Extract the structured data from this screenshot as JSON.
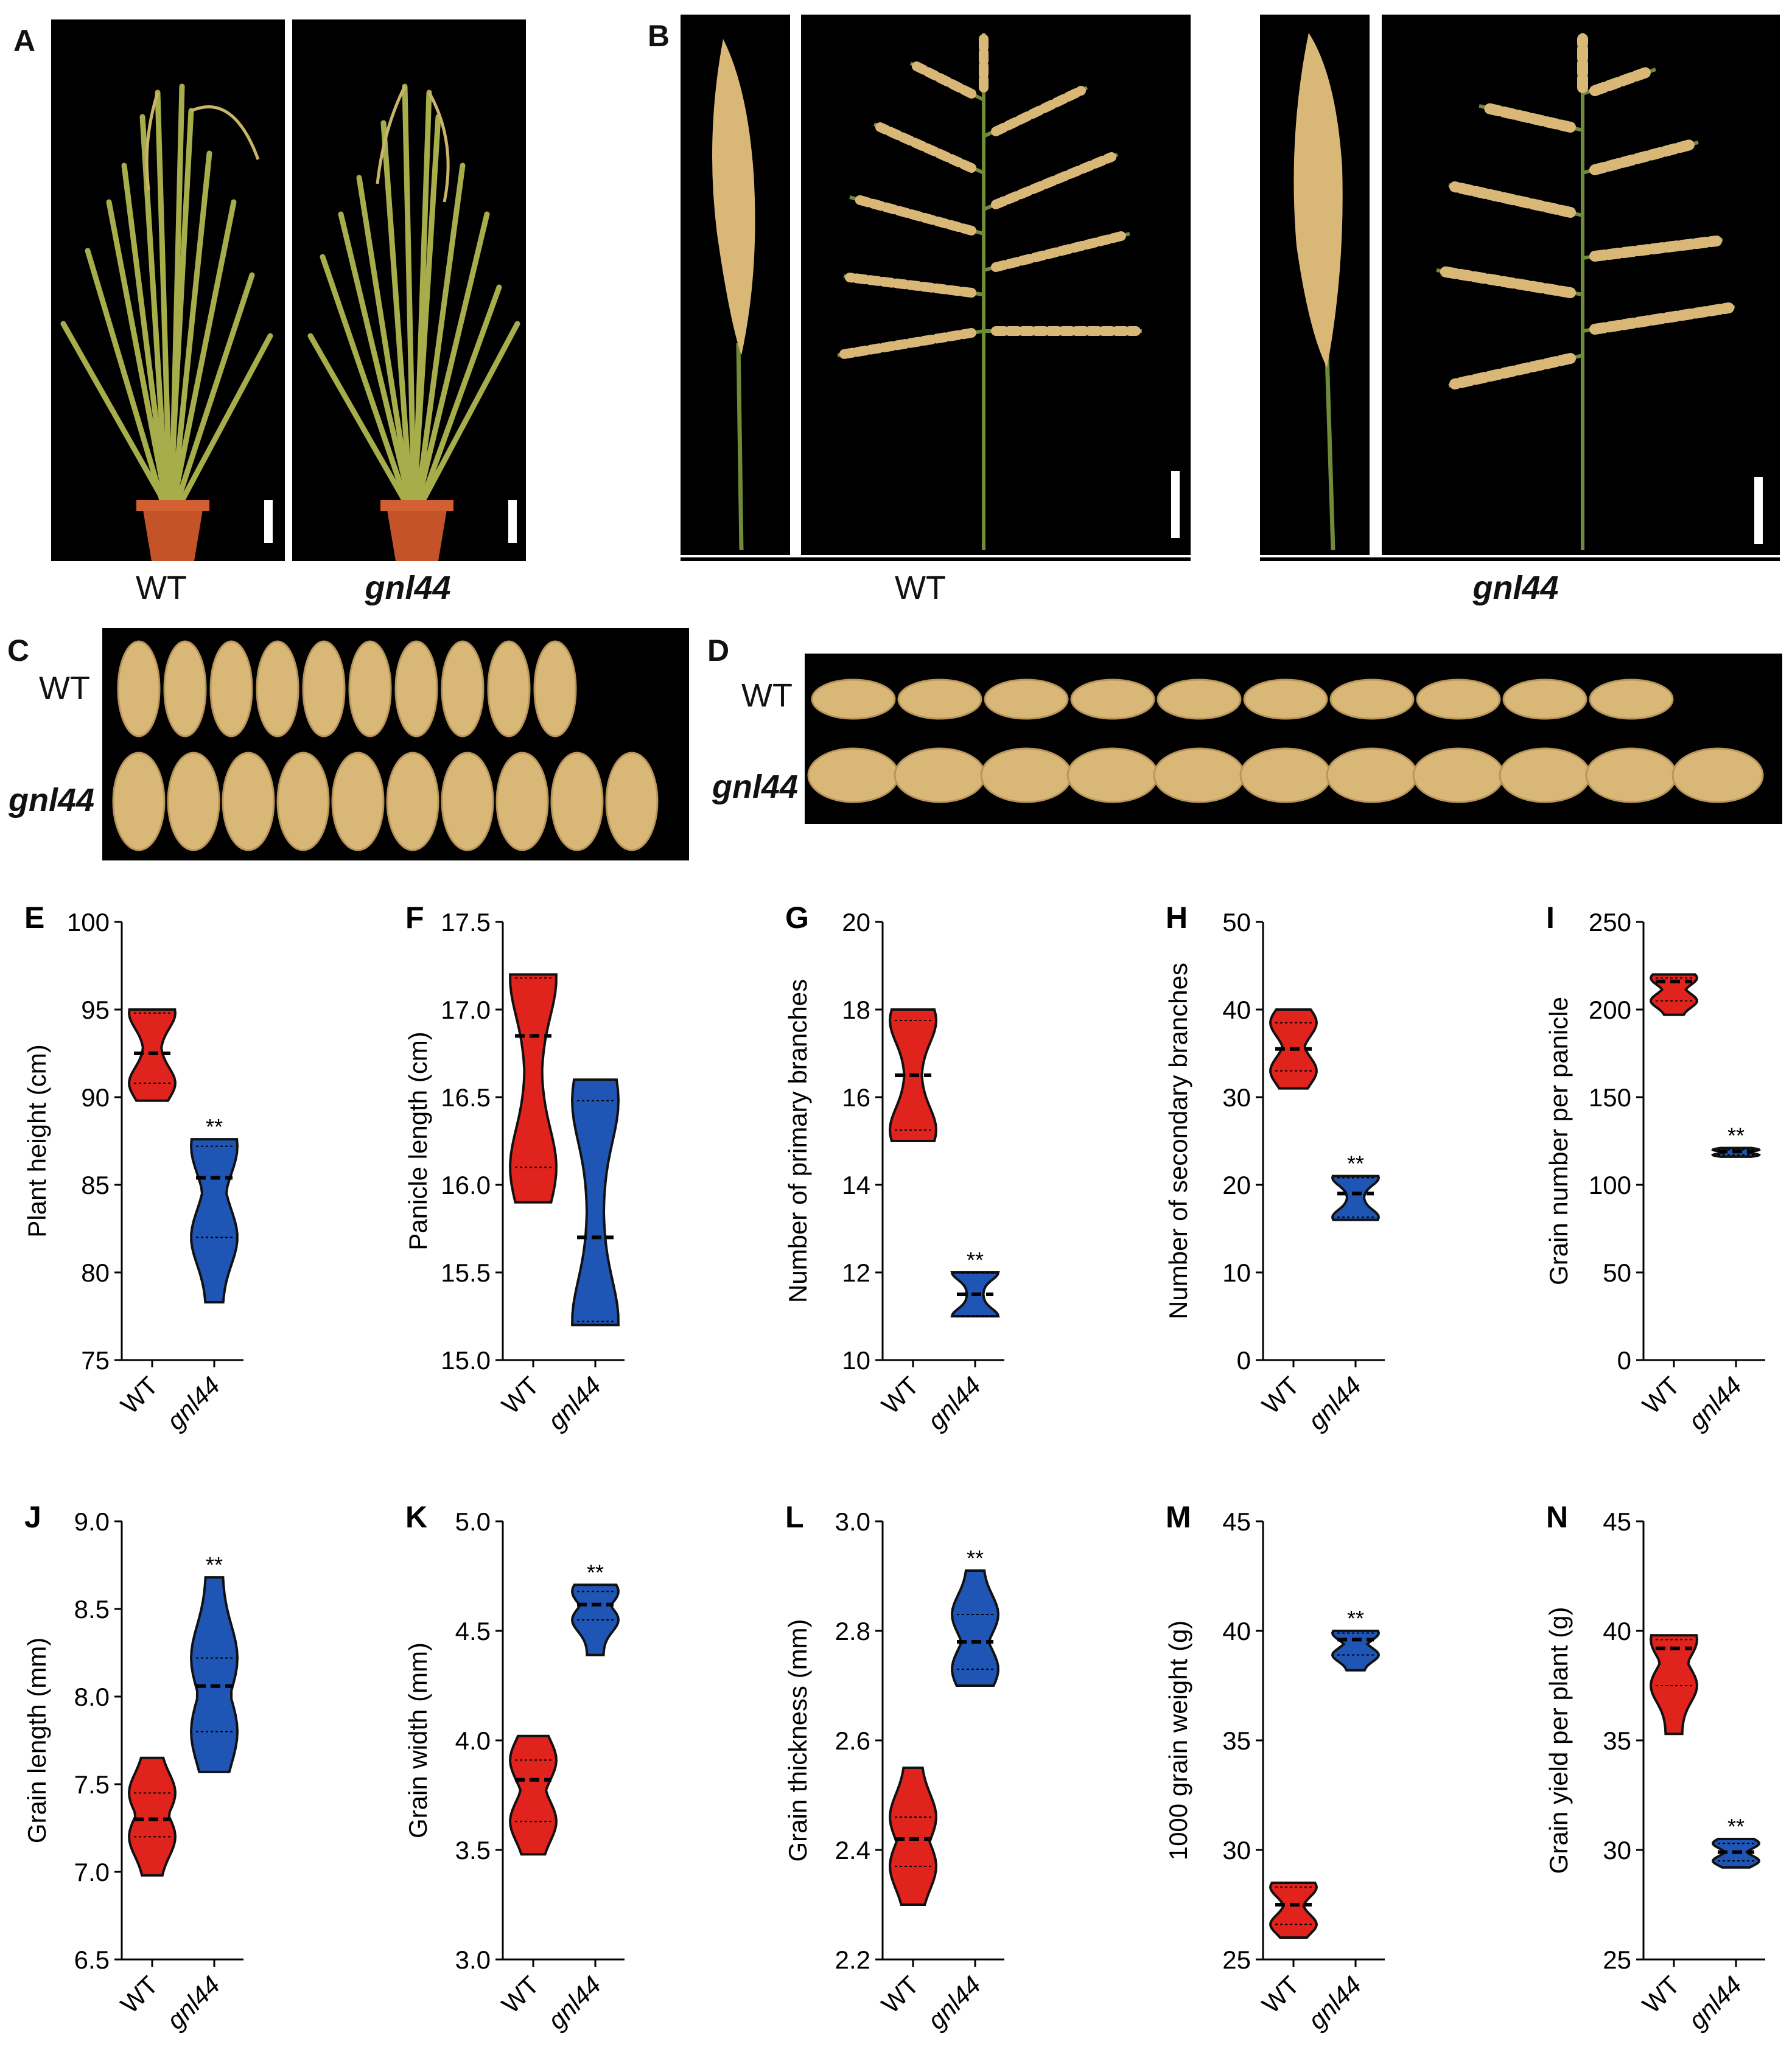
{
  "panels": {
    "A": {
      "letter": "A",
      "captions": [
        "WT",
        "gnl44"
      ]
    },
    "B": {
      "letter": "B",
      "captions": [
        "WT",
        "gnl44"
      ]
    },
    "C": {
      "letter": "C",
      "rows": [
        "WT",
        "gnl44"
      ]
    },
    "D": {
      "letter": "D",
      "rows": [
        "WT",
        "gnl44"
      ]
    }
  },
  "colors": {
    "wt": "#e0231c",
    "mutant": "#1f55b5",
    "background": "#000000",
    "grain": "#d9b877",
    "plant": "#9aa544",
    "pot": "#c4532a"
  },
  "chart_data": [
    {
      "letter": "E",
      "type": "violin",
      "ylabel": "Plant height (cm)",
      "ylim": [
        75,
        100
      ],
      "yticks": [
        75,
        80,
        85,
        90,
        95,
        100
      ],
      "categories": [
        "WT",
        "gnl44"
      ],
      "series": [
        {
          "category": "WT",
          "min": 89.8,
          "max": 95.0,
          "median": 92.5,
          "q1": 90.8,
          "q3": 94.8,
          "significance": ""
        },
        {
          "category": "gnl44",
          "min": 78.3,
          "max": 87.6,
          "median": 85.4,
          "q1": 82.0,
          "q3": 87.2,
          "significance": "**"
        }
      ]
    },
    {
      "letter": "F",
      "type": "violin",
      "ylabel": "Panicle length (cm)",
      "ylim": [
        15.0,
        17.5
      ],
      "yticks": [
        "15.0",
        "15.5",
        "16.0",
        "16.5",
        "17.0",
        "17.5"
      ],
      "categories": [
        "WT",
        "gnl44"
      ],
      "series": [
        {
          "category": "WT",
          "min": 15.9,
          "max": 17.2,
          "median": 16.85,
          "q1": 16.1,
          "q3": 17.18,
          "significance": ""
        },
        {
          "category": "gnl44",
          "min": 15.2,
          "max": 16.6,
          "median": 15.7,
          "q1": 15.22,
          "q3": 16.48,
          "significance": ""
        }
      ]
    },
    {
      "letter": "G",
      "type": "violin",
      "ylabel": "Number of primary branches",
      "ylim": [
        10,
        20
      ],
      "yticks": [
        10,
        12,
        14,
        16,
        18,
        20
      ],
      "categories": [
        "WT",
        "gnl44"
      ],
      "series": [
        {
          "category": "WT",
          "min": 15.0,
          "max": 18.0,
          "median": 16.5,
          "q1": 15.25,
          "q3": 17.75,
          "significance": ""
        },
        {
          "category": "gnl44",
          "min": 11.0,
          "max": 12.0,
          "median": 11.5,
          "q1": 11.0,
          "q3": 12.0,
          "significance": "**"
        }
      ]
    },
    {
      "letter": "H",
      "type": "violin",
      "ylabel": "Number of secondary branches",
      "ylim": [
        0,
        50
      ],
      "yticks": [
        0,
        10,
        20,
        30,
        40,
        50
      ],
      "categories": [
        "WT",
        "gnl44"
      ],
      "series": [
        {
          "category": "WT",
          "min": 31.0,
          "max": 40.0,
          "median": 35.5,
          "q1": 33.0,
          "q3": 38.5,
          "significance": ""
        },
        {
          "category": "gnl44",
          "min": 16.0,
          "max": 21.0,
          "median": 19.0,
          "q1": 16.3,
          "q3": 20.8,
          "significance": "**"
        }
      ]
    },
    {
      "letter": "I",
      "type": "violin",
      "ylabel": "Grain number per panicle",
      "ylim": [
        0,
        250
      ],
      "yticks": [
        0,
        50,
        100,
        150,
        200,
        250
      ],
      "categories": [
        "WT",
        "gnl44"
      ],
      "series": [
        {
          "category": "WT",
          "min": 197,
          "max": 220,
          "median": 216,
          "q1": 205,
          "q3": 218,
          "significance": ""
        },
        {
          "category": "gnl44",
          "min": 116,
          "max": 121,
          "median": 119,
          "q1": 117,
          "q3": 120,
          "significance": "**"
        }
      ]
    },
    {
      "letter": "J",
      "type": "violin",
      "ylabel": "Grain length (mm)",
      "ylim": [
        6.5,
        9.0
      ],
      "yticks": [
        "6.5",
        "7.0",
        "7.5",
        "8.0",
        "8.5",
        "9.0"
      ],
      "categories": [
        "WT",
        "gnl44"
      ],
      "series": [
        {
          "category": "WT",
          "min": 6.98,
          "max": 7.65,
          "median": 7.3,
          "q1": 7.2,
          "q3": 7.45,
          "significance": ""
        },
        {
          "category": "gnl44",
          "min": 7.57,
          "max": 8.68,
          "median": 8.06,
          "q1": 7.8,
          "q3": 8.22,
          "significance": "**"
        }
      ]
    },
    {
      "letter": "K",
      "type": "violin",
      "ylabel": "Grain width (mm)",
      "ylim": [
        3.0,
        5.0
      ],
      "yticks": [
        "3.0",
        "3.5",
        "4.0",
        "4.5",
        "5.0"
      ],
      "categories": [
        "WT",
        "gnl44"
      ],
      "series": [
        {
          "category": "WT",
          "min": 3.48,
          "max": 4.02,
          "median": 3.82,
          "q1": 3.63,
          "q3": 3.91,
          "significance": ""
        },
        {
          "category": "gnl44",
          "min": 4.39,
          "max": 4.71,
          "median": 4.62,
          "q1": 4.55,
          "q3": 4.68,
          "significance": "**"
        }
      ]
    },
    {
      "letter": "L",
      "type": "violin",
      "ylabel": "Grain thickness (mm)",
      "ylim": [
        2.2,
        3.0
      ],
      "yticks": [
        "2.2",
        "2.4",
        "2.6",
        "2.8",
        "3.0"
      ],
      "categories": [
        "WT",
        "gnl44"
      ],
      "series": [
        {
          "category": "WT",
          "min": 2.3,
          "max": 2.55,
          "median": 2.42,
          "q1": 2.37,
          "q3": 2.46,
          "significance": ""
        },
        {
          "category": "gnl44",
          "min": 2.7,
          "max": 2.91,
          "median": 2.78,
          "q1": 2.73,
          "q3": 2.83,
          "significance": "**"
        }
      ]
    },
    {
      "letter": "M",
      "type": "violin",
      "ylabel": "1000 grain weight (g)",
      "ylim": [
        25,
        45
      ],
      "yticks": [
        25,
        30,
        35,
        40,
        45
      ],
      "categories": [
        "WT",
        "gnl44"
      ],
      "series": [
        {
          "category": "WT",
          "min": 26.0,
          "max": 28.5,
          "median": 27.5,
          "q1": 26.6,
          "q3": 28.3,
          "significance": ""
        },
        {
          "category": "gnl44",
          "min": 38.2,
          "max": 40.0,
          "median": 39.6,
          "q1": 38.9,
          "q3": 39.9,
          "significance": "**"
        }
      ]
    },
    {
      "letter": "N",
      "type": "violin",
      "ylabel": "Grain yield per plant (g)",
      "ylim": [
        25,
        45
      ],
      "yticks": [
        25,
        30,
        35,
        40,
        45
      ],
      "categories": [
        "WT",
        "gnl44"
      ],
      "series": [
        {
          "category": "WT",
          "min": 35.3,
          "max": 39.8,
          "median": 39.2,
          "q1": 37.5,
          "q3": 39.6,
          "significance": ""
        },
        {
          "category": "gnl44",
          "min": 29.2,
          "max": 30.5,
          "median": 29.9,
          "q1": 29.5,
          "q3": 30.3,
          "significance": "**"
        }
      ]
    }
  ]
}
